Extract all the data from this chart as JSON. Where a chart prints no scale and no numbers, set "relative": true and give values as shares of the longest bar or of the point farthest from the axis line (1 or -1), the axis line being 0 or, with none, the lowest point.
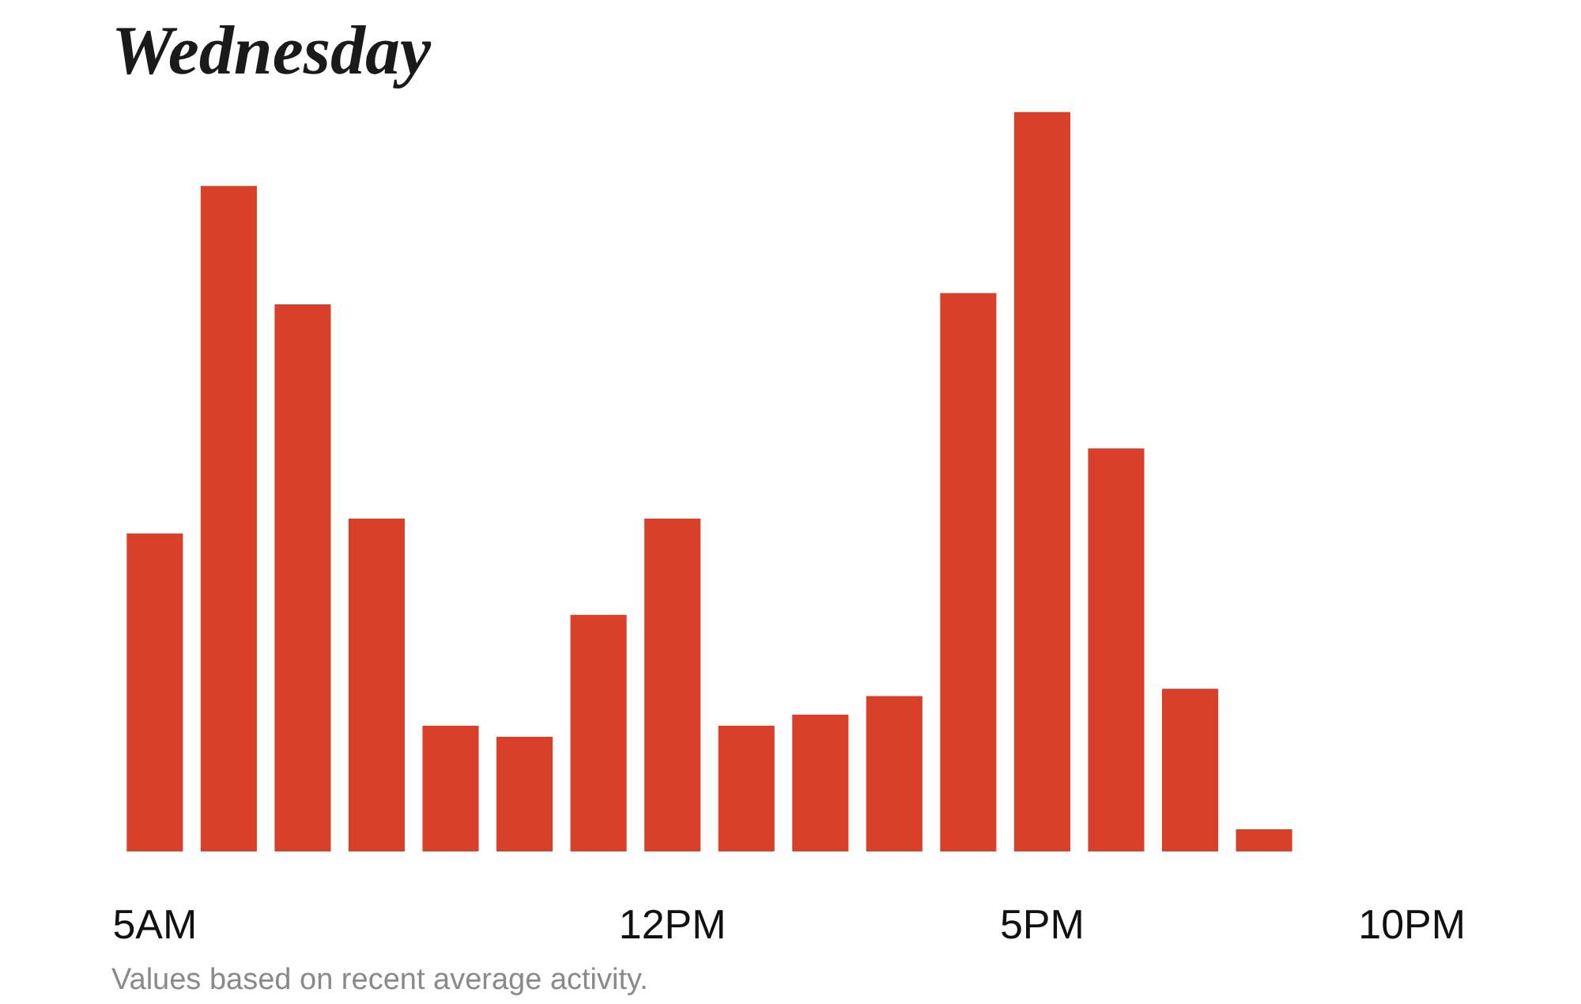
{
  "chart_data": {
    "type": "bar",
    "title": "Wednesday",
    "relative": true,
    "categories": [
      "5AM",
      null,
      null,
      null,
      null,
      null,
      null,
      "12PM",
      null,
      null,
      null,
      null,
      "5PM",
      null,
      null,
      null,
      null,
      "10PM"
    ],
    "values": [
      0.43,
      0.9,
      0.74,
      0.45,
      0.17,
      0.155,
      0.32,
      0.45,
      0.17,
      0.185,
      0.21,
      0.755,
      1,
      0.545,
      0.22,
      0.03,
      null,
      null
    ],
    "color": "#d9402a",
    "grid": false,
    "annotations": [
      "Values based on recent average activity."
    ]
  }
}
